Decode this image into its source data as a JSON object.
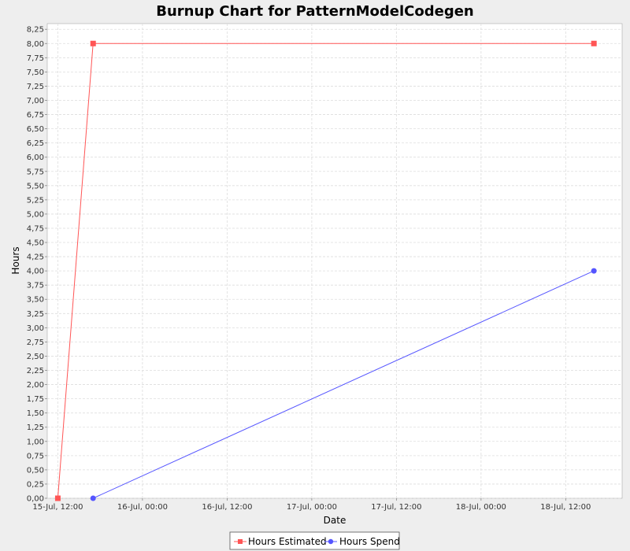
{
  "chart_data": {
    "type": "line",
    "title": "Burnup Chart for PatternModelCodegen",
    "xlabel": "Date",
    "ylabel": "Hours",
    "x_axis_type": "date",
    "xlim": [
      "2007-07-15T10:30",
      "2007-07-18T20:00"
    ],
    "ylim": [
      0,
      8.35
    ],
    "y_tick_step": 0.25,
    "x_ticks": [
      {
        "x": "2007-07-15T12:00",
        "label": "15-Jul, 12:00"
      },
      {
        "x": "2007-07-16T00:00",
        "label": "16-Jul, 00:00"
      },
      {
        "x": "2007-07-16T12:00",
        "label": "16-Jul, 12:00"
      },
      {
        "x": "2007-07-17T00:00",
        "label": "17-Jul, 00:00"
      },
      {
        "x": "2007-07-17T12:00",
        "label": "17-Jul, 12:00"
      },
      {
        "x": "2007-07-18T00:00",
        "label": "18-Jul, 00:00"
      },
      {
        "x": "2007-07-18T12:00",
        "label": "18-Jul, 12:00"
      }
    ],
    "y_ticks": [
      "0,00",
      "0,25",
      "0,50",
      "0,75",
      "1,00",
      "1,25",
      "1,50",
      "1,75",
      "2,00",
      "2,25",
      "2,50",
      "2,75",
      "3,00",
      "3,25",
      "3,50",
      "3,75",
      "4,00",
      "4,25",
      "4,50",
      "4,75",
      "5,00",
      "5,25",
      "5,50",
      "5,75",
      "6,00",
      "6,25",
      "6,50",
      "6,75",
      "7,00",
      "7,25",
      "7,50",
      "7,75",
      "8,00",
      "8,25"
    ],
    "grid": true,
    "legend_position": "bottom",
    "series": [
      {
        "name": "Hours Estimated",
        "color": "#ff5555",
        "marker": "square",
        "points": [
          {
            "x": "2007-07-15T12:00",
            "y": 0
          },
          {
            "x": "2007-07-15T17:00",
            "y": 8
          },
          {
            "x": "2007-07-18T16:00",
            "y": 8
          }
        ]
      },
      {
        "name": "Hours Spend",
        "color": "#5555ff",
        "marker": "circle",
        "points": [
          {
            "x": "2007-07-15T17:00",
            "y": 0
          },
          {
            "x": "2007-07-18T16:00",
            "y": 4
          }
        ]
      }
    ]
  }
}
